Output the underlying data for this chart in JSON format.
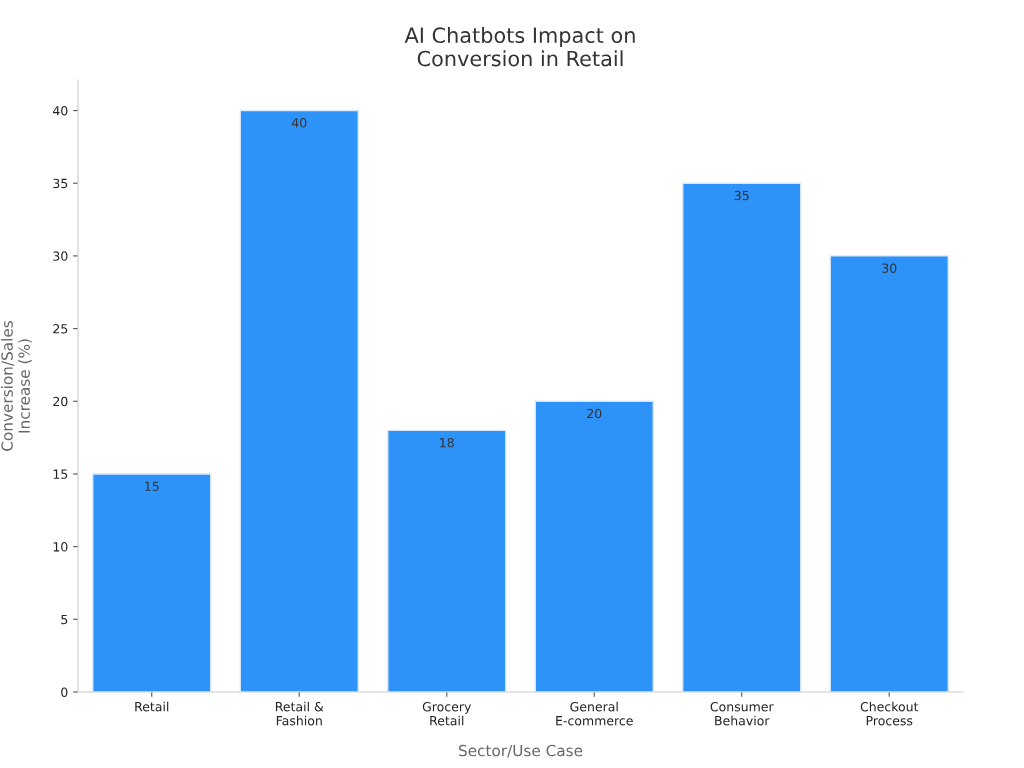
{
  "chart_data": {
    "type": "bar",
    "title": "AI Chatbots Impact on\nConversion in Retail",
    "xlabel": "Sector/Use Case",
    "ylabel": "Conversion/Sales\nIncrease (%)",
    "categories": [
      "Retail",
      "Retail &\nFashion",
      "Grocery\nRetail",
      "General\nE-commerce",
      "Consumer\nBehavior",
      "Checkout\nProcess"
    ],
    "values": [
      15,
      40,
      18,
      20,
      35,
      30
    ],
    "color": "#2e93f8",
    "ylim": [
      0,
      42.1
    ],
    "yticks": [
      0,
      5,
      10,
      15,
      20,
      25,
      30,
      35,
      40
    ],
    "grid": false,
    "data_labels": true,
    "legend": false
  }
}
